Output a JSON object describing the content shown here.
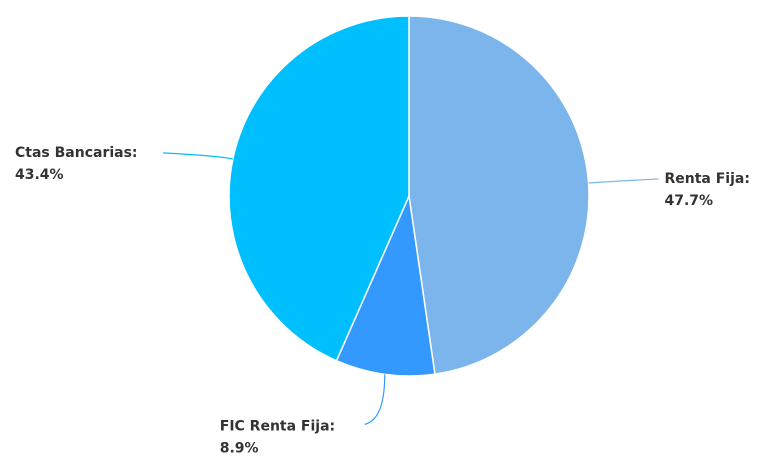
{
  "chart_data": {
    "type": "pie",
    "categories": [
      "Renta Fija:",
      "FIC Renta Fija:",
      "Ctas Bancarias:"
    ],
    "values": [
      47.7,
      8.9,
      43.4
    ],
    "value_labels": [
      "47.7%",
      "8.9%",
      "43.4%"
    ],
    "colors": [
      "#7cb5ec",
      "#3399ff",
      "#00bfff"
    ]
  }
}
